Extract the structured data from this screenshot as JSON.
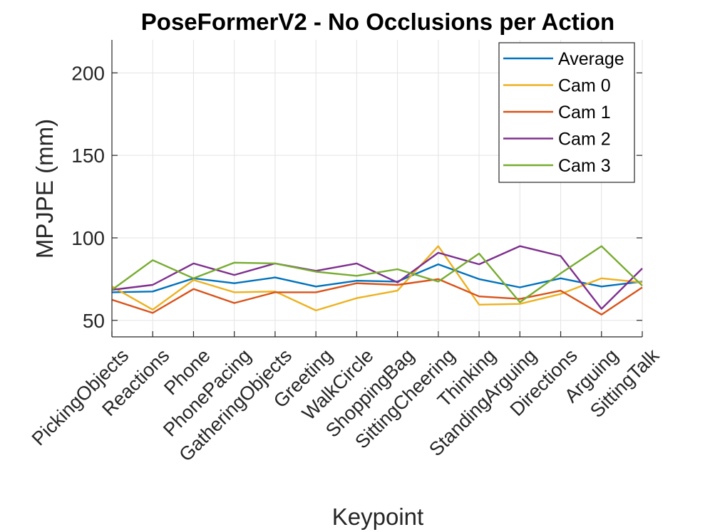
{
  "chart_data": {
    "type": "line",
    "title": "PoseFormerV2 - No Occlusions per Action",
    "xlabel": "Keypoint",
    "ylabel": "MPJPE (mm)",
    "ylim": [
      40,
      220
    ],
    "yticks": [
      50,
      100,
      150,
      200
    ],
    "grid": true,
    "legend_position": "top-right",
    "categories": [
      "PickingObjects",
      "Reactions",
      "Phone",
      "PhonePacing",
      "GatheringObjects",
      "Greeting",
      "WalkCircle",
      "ShoppingBag",
      "SittingCheering",
      "Thinking",
      "StandingArguing",
      "Directions",
      "Arguing",
      "SittingTalk"
    ],
    "series": [
      {
        "name": "Average",
        "color": "#0072BD",
        "values": [
          67,
          67.5,
          75.5,
          72.5,
          76,
          70.5,
          74,
          73.5,
          84,
          75,
          70,
          75.5,
          70.5,
          73.5
        ]
      },
      {
        "name": "Cam 0",
        "color": "#EDB120",
        "values": [
          70.5,
          56.5,
          74.5,
          67,
          67.5,
          56,
          63.5,
          68,
          95,
          59.5,
          60,
          66,
          75.5,
          73
        ]
      },
      {
        "name": "Cam 1",
        "color": "#D95319",
        "values": [
          62.5,
          54.5,
          69,
          60.5,
          67,
          67,
          72.5,
          71.5,
          75,
          64.5,
          63,
          68,
          53.5,
          70
        ]
      },
      {
        "name": "Cam 2",
        "color": "#7E2F8E",
        "values": [
          68.5,
          71.5,
          84.5,
          77.5,
          84.5,
          80,
          84.5,
          73,
          91,
          84,
          95,
          89,
          57,
          81.5
        ]
      },
      {
        "name": "Cam 3",
        "color": "#77AC30",
        "values": [
          68.5,
          86.5,
          75.5,
          85,
          84.5,
          79.5,
          77,
          81,
          73.5,
          90.5,
          61,
          78.5,
          95,
          71
        ]
      }
    ]
  }
}
